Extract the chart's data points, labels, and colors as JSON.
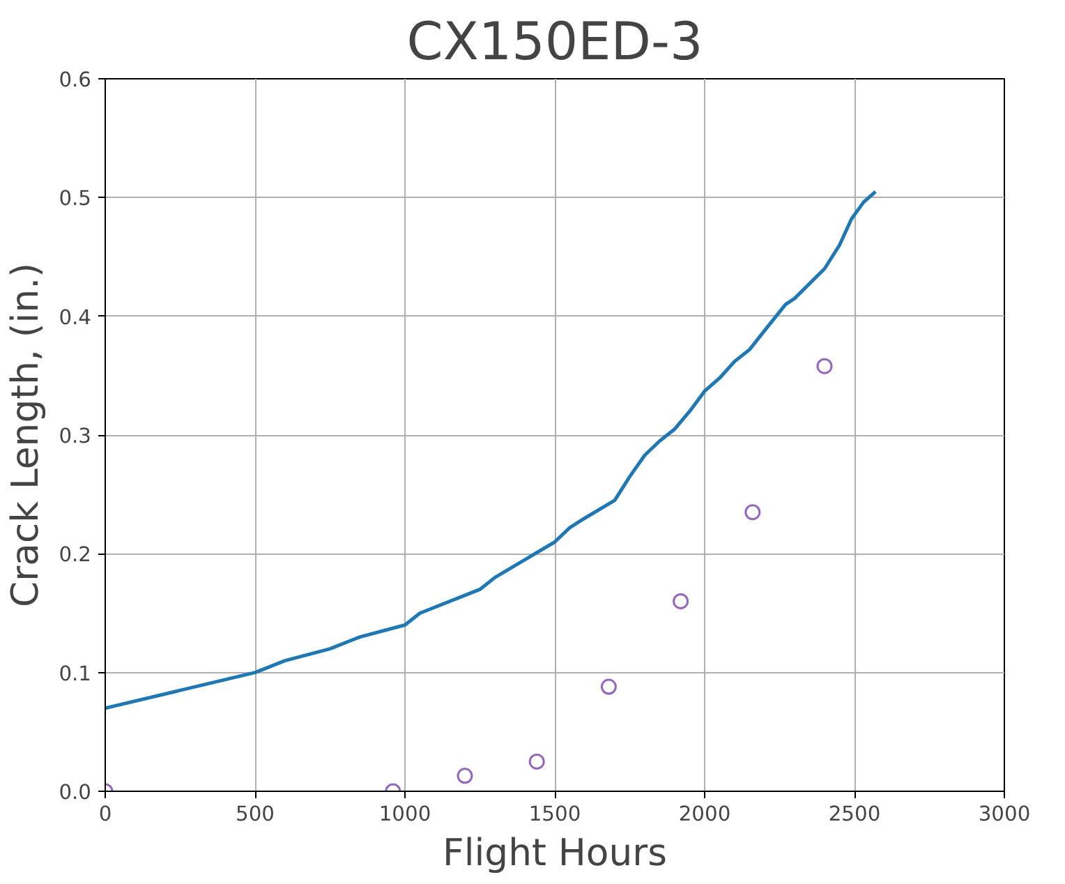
{
  "chart_data": {
    "type": "line",
    "title": "CX150ED-3",
    "xlabel": "Flight Hours",
    "ylabel": "Crack Length, (in.)",
    "xlim": [
      0,
      3000
    ],
    "xticks": [
      0,
      500,
      1000,
      1500,
      2000,
      2500,
      3000
    ],
    "ylim": [
      0,
      0.6
    ],
    "yticks": [
      {
        "value": 0,
        "label": "0.0"
      },
      0.1,
      0.2,
      0.3,
      0.4,
      0.5,
      0.6
    ],
    "grid": true,
    "series": [
      {
        "color": "#1f77b4",
        "marker": "none",
        "x": [
          0,
          500,
          600,
          750,
          850,
          1000,
          1050,
          1250,
          1300,
          1500,
          1550,
          1600,
          1700,
          1750,
          1800,
          1850,
          1900,
          1950,
          2000,
          2050,
          2100,
          2150,
          2200,
          2270,
          2300,
          2400,
          2450,
          2490,
          2530,
          2570
        ],
        "values": [
          0.07,
          0.1,
          0.11,
          0.12,
          0.13,
          0.14,
          0.15,
          0.17,
          0.18,
          0.21,
          0.222,
          0.23,
          0.245,
          0.265,
          0.283,
          0.295,
          0.305,
          0.32,
          0.337,
          0.348,
          0.362,
          0.372,
          0.388,
          0.41,
          0.415,
          0.44,
          0.46,
          0.482,
          0.496,
          0.505
        ]
      },
      {
        "type": "scatter",
        "color": "#9467bd",
        "marker": "circle",
        "x": [
          0,
          960,
          1200,
          1440,
          1680,
          1920,
          2160,
          2400
        ],
        "values": [
          0,
          0,
          0.013,
          0.025,
          0.088,
          0.16,
          0.235,
          0.358
        ]
      }
    ]
  }
}
